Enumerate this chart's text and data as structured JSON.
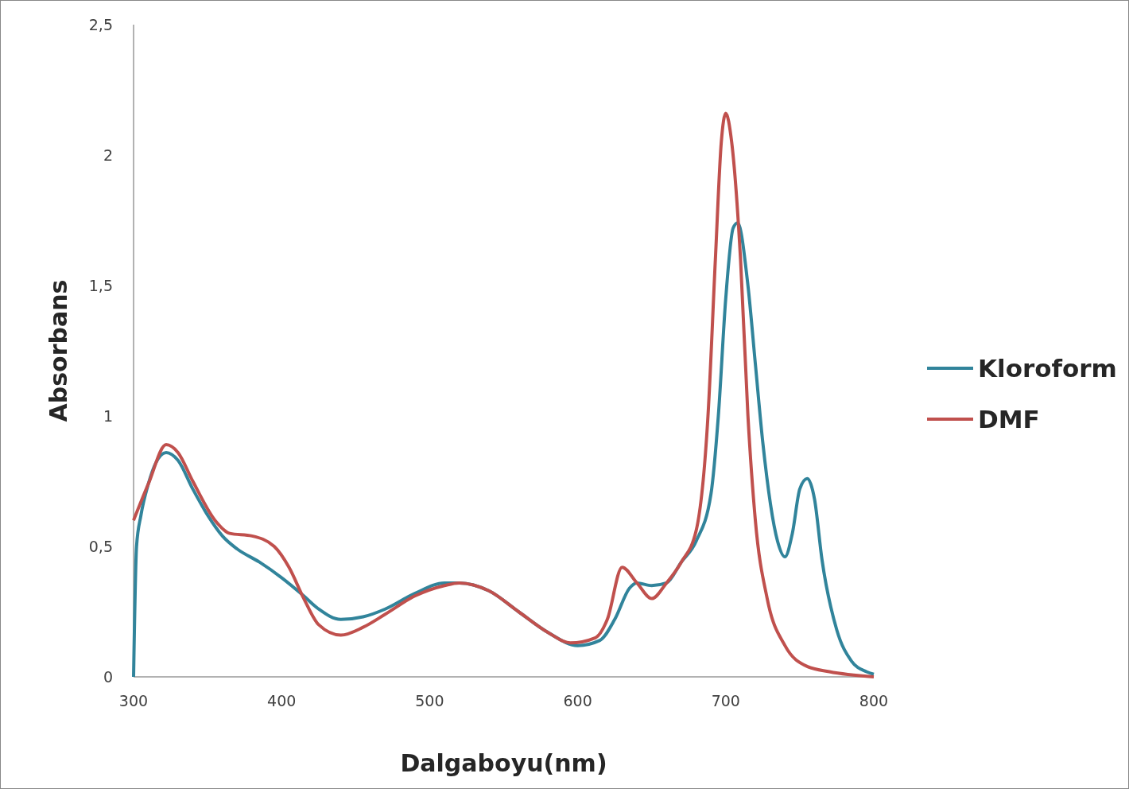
{
  "chart_data": {
    "type": "line",
    "xlabel": "Dalgaboyu(nm)",
    "ylabel": "Absorbans",
    "xlim": [
      300,
      800
    ],
    "xticks": [
      300,
      400,
      500,
      600,
      700,
      800
    ],
    "ylim": [
      0,
      2.5
    ],
    "yticks": [
      {
        "value": 0,
        "label": "0"
      },
      {
        "value": 0.5,
        "label": "0,5"
      },
      {
        "value": 1,
        "label": "1"
      },
      {
        "value": 1.5,
        "label": "1,5"
      },
      {
        "value": 2,
        "label": "2"
      },
      {
        "value": 2.5,
        "label": "2,5"
      }
    ],
    "grid": false,
    "legend": "right",
    "line_style": "solid",
    "series": [
      {
        "name": "Kloroform",
        "color": "#31849b",
        "x": [
          300,
          302,
          305,
          310,
          315,
          322,
          330,
          340,
          350,
          360,
          370,
          385,
          400,
          415,
          425,
          440,
          455,
          470,
          490,
          510,
          520,
          540,
          560,
          580,
          600,
          615,
          625,
          635,
          640,
          650,
          660,
          670,
          680,
          690,
          695,
          700,
          705,
          708,
          715,
          720,
          725,
          735,
          740,
          745,
          750,
          755,
          760,
          765,
          775,
          785,
          795,
          800
        ],
        "values": [
          0,
          0.5,
          0.62,
          0.74,
          0.82,
          0.86,
          0.83,
          0.72,
          0.62,
          0.54,
          0.49,
          0.44,
          0.38,
          0.31,
          0.26,
          0.22,
          0.23,
          0.26,
          0.32,
          0.36,
          0.36,
          0.33,
          0.25,
          0.17,
          0.12,
          0.14,
          0.22,
          0.34,
          0.36,
          0.35,
          0.36,
          0.44,
          0.52,
          0.7,
          1.0,
          1.45,
          1.72,
          1.74,
          1.5,
          1.2,
          0.9,
          0.52,
          0.46,
          0.55,
          0.72,
          0.76,
          0.68,
          0.45,
          0.18,
          0.06,
          0.02,
          0.01
        ]
      },
      {
        "name": "DMF",
        "color": "#c0504d",
        "x": [
          300,
          310,
          322,
          330,
          340,
          355,
          365,
          380,
          395,
          405,
          415,
          425,
          440,
          455,
          470,
          490,
          510,
          520,
          540,
          560,
          580,
          595,
          612,
          620,
          630,
          640,
          650,
          660,
          670,
          680,
          688,
          693,
          697,
          700,
          704,
          710,
          715,
          720,
          728,
          740,
          755,
          770,
          800
        ],
        "values": [
          0.6,
          0.74,
          0.89,
          0.86,
          0.75,
          0.6,
          0.55,
          0.54,
          0.5,
          0.42,
          0.3,
          0.2,
          0.16,
          0.19,
          0.24,
          0.31,
          0.35,
          0.36,
          0.33,
          0.25,
          0.17,
          0.13,
          0.15,
          0.22,
          0.42,
          0.36,
          0.3,
          0.36,
          0.44,
          0.56,
          1.0,
          1.6,
          2.05,
          2.16,
          2.05,
          1.6,
          1.0,
          0.6,
          0.3,
          0.12,
          0.04,
          0.02,
          0
        ]
      }
    ]
  }
}
